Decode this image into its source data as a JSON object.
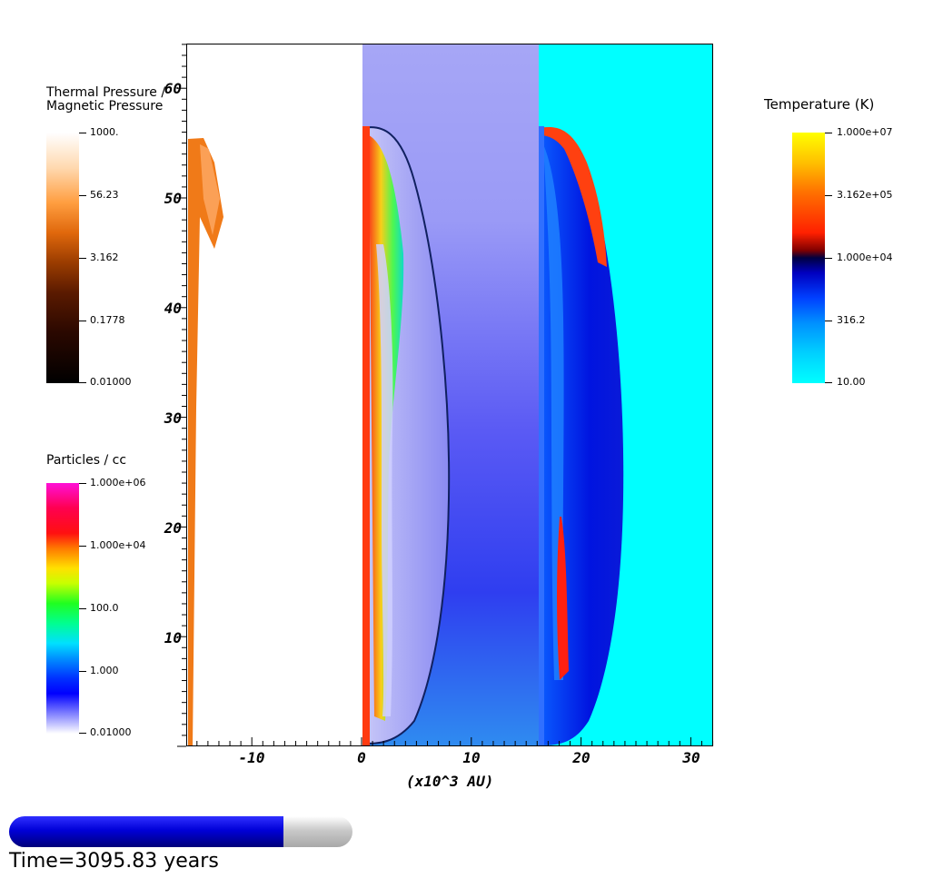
{
  "colorbars": {
    "pressure_ratio": {
      "title_line1": "Thermal Pressure /",
      "title_line2": "Magnetic Pressure",
      "ticks": [
        "1000.",
        "56.23",
        "3.162",
        "0.1778",
        "0.01000"
      ]
    },
    "density": {
      "title": "Particles / cc",
      "ticks": [
        "1.000e+06",
        "1.000e+04",
        "100.0",
        "1.000",
        "0.01000"
      ]
    },
    "temperature": {
      "title": "Temperature (K)",
      "ticks": [
        "1.000e+07",
        "3.162e+05",
        "1.000e+04",
        "316.2",
        "10.00"
      ]
    }
  },
  "plot": {
    "x_axis_label": "(x10^3 AU)",
    "x_tick_labels": [
      "-10",
      "0",
      "10",
      "20",
      "30"
    ],
    "y_tick_labels": [
      "60",
      "50",
      "40",
      "30",
      "20",
      "10"
    ]
  },
  "time": {
    "label": "Time=3095.83 years",
    "progress_fraction": 0.8
  },
  "colors": {
    "cyan_background": "#00ffff",
    "blue_band_top": "#a0a0f8",
    "time_fill": "#0000d0"
  }
}
